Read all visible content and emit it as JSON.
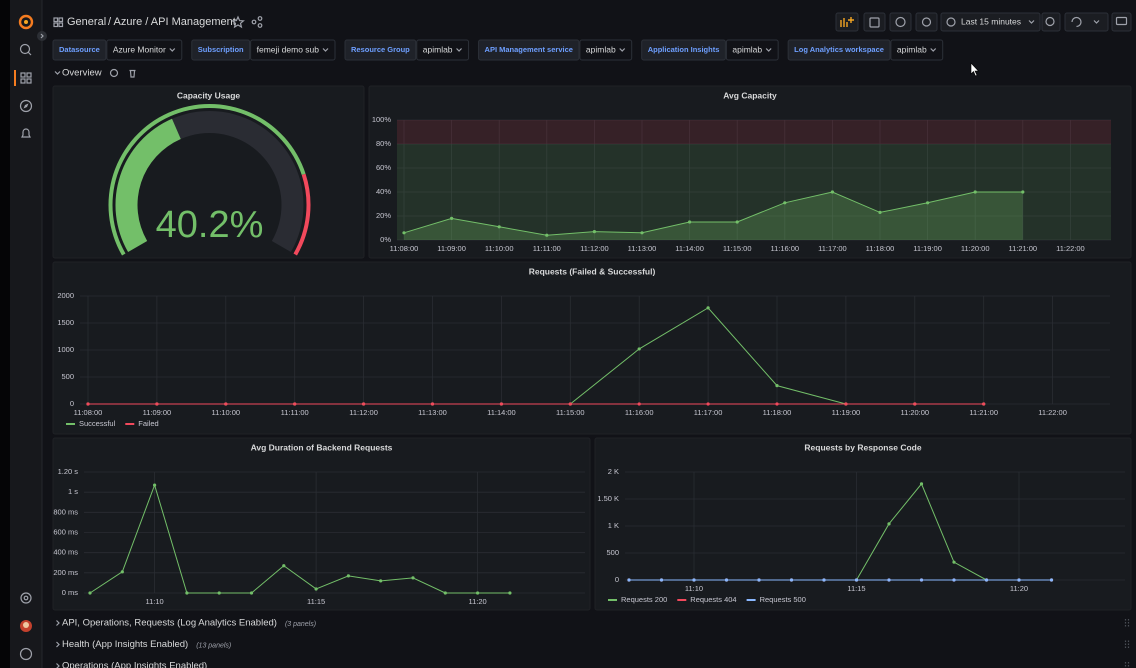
{
  "header": {
    "folder": "General",
    "path": "/ Azure / API Management",
    "time_range": "Last 15 minutes"
  },
  "variables": [
    {
      "label": "Datasource",
      "value": "Azure Monitor"
    },
    {
      "label": "Subscription",
      "value": "femeji demo sub"
    },
    {
      "label": "Resource Group",
      "value": "apimlab"
    },
    {
      "label": "API Management service",
      "value": "apimlab"
    },
    {
      "label": "Application Insights",
      "value": "apimlab"
    },
    {
      "label": "Log Analytics workspace",
      "value": "apimlab"
    }
  ],
  "row": {
    "title": "Overview"
  },
  "chart_data": [
    {
      "type": "gauge",
      "title": "Capacity Usage",
      "values": [
        40.2
      ],
      "value_labels": [
        "40.2%"
      ],
      "ylim": [
        0,
        100
      ],
      "thresholds": [
        80
      ],
      "color": "#73bf69",
      "threshold_color": "#f2495c"
    },
    {
      "type": "area",
      "title": "Avg Capacity",
      "categories": [
        "11:08:00",
        "11:09:00",
        "11:10:00",
        "11:11:00",
        "11:12:00",
        "11:13:00",
        "11:14:00",
        "11:15:00",
        "11:16:00",
        "11:17:00",
        "11:18:00",
        "11:19:00",
        "11:20:00",
        "11:21:00",
        "11:22:00"
      ],
      "values": [
        6,
        18,
        11,
        4,
        7,
        6,
        15,
        15,
        31,
        40,
        23,
        31,
        40,
        40,
        null
      ],
      "color": "#73bf69",
      "thresholds": [
        80
      ],
      "threshold_color": "#f2495c",
      "points": true,
      "grid": true,
      "ylim": [
        0,
        100
      ],
      "yticks": [
        {
          "value": 0,
          "label": "0%"
        },
        {
          "value": 20,
          "label": "20%"
        },
        {
          "value": 40,
          "label": "40%"
        },
        {
          "value": 60,
          "label": "60%"
        },
        {
          "value": 80,
          "label": "80%"
        },
        {
          "value": 100,
          "label": "100%"
        }
      ]
    },
    {
      "type": "line",
      "title": "Requests (Failed & Successful)",
      "categories": [
        "11:08:00",
        "11:09:00",
        "11:10:00",
        "11:11:00",
        "11:12:00",
        "11:13:00",
        "11:14:00",
        "11:15:00",
        "11:16:00",
        "11:17:00",
        "11:18:00",
        "11:19:00",
        "11:20:00",
        "11:21:00",
        "11:22:00"
      ],
      "series": [
        {
          "name": "Successful",
          "color": "#73bf69",
          "values": [
            0,
            0,
            0,
            0,
            0,
            0,
            0,
            0,
            1020,
            1780,
            340,
            0,
            0,
            0,
            null
          ]
        },
        {
          "name": "Failed",
          "color": "#f2495c",
          "values": [
            0,
            0,
            0,
            0,
            0,
            0,
            0,
            0,
            0,
            0,
            0,
            0,
            0,
            0,
            null
          ]
        }
      ],
      "points": true,
      "grid": true,
      "ylim": [
        0,
        2000
      ],
      "yticks": [
        0,
        500,
        1000,
        1500,
        2000
      ]
    },
    {
      "type": "line",
      "title": "Avg Duration of Backend Requests",
      "categories": [
        null,
        null,
        "11:10",
        null,
        null,
        null,
        null,
        "11:15",
        null,
        null,
        null,
        null,
        "11:20",
        null
      ],
      "values": [
        0,
        210,
        1070,
        0,
        0,
        0,
        270,
        40,
        170,
        120,
        150,
        0,
        0,
        0
      ],
      "color": "#73bf69",
      "points": true,
      "grid": true,
      "ylim": [
        0,
        1200
      ],
      "yticks": [
        {
          "value": 0,
          "label": "0 ms"
        },
        {
          "value": 200,
          "label": "200 ms"
        },
        {
          "value": 400,
          "label": "400 ms"
        },
        {
          "value": 600,
          "label": "600 ms"
        },
        {
          "value": 800,
          "label": "800 ms"
        },
        {
          "value": 1000,
          "label": "1 s"
        },
        {
          "value": 1200,
          "label": "1.20 s"
        }
      ]
    },
    {
      "type": "line",
      "title": "Requests by Response Code",
      "categories": [
        null,
        null,
        "11:10",
        null,
        null,
        null,
        null,
        "11:15",
        null,
        null,
        null,
        null,
        "11:20",
        null
      ],
      "series": [
        {
          "name": "Requests 200",
          "color": "#73bf69",
          "values": [
            0,
            0,
            0,
            0,
            0,
            0,
            0,
            0,
            1040,
            1780,
            330,
            0,
            0,
            0
          ]
        },
        {
          "name": "Requests 404",
          "color": "#f2495c",
          "values": [
            0,
            0,
            0,
            0,
            0,
            0,
            0,
            0,
            0,
            0,
            0,
            0,
            0,
            0
          ]
        },
        {
          "name": "Requests 500",
          "color": "#8ab8ff",
          "values": [
            0,
            0,
            0,
            0,
            0,
            0,
            0,
            0,
            0,
            0,
            0,
            0,
            0,
            0
          ]
        }
      ],
      "points": true,
      "grid": true,
      "ylim": [
        0,
        2000
      ],
      "yticks": [
        0,
        500,
        {
          "value": 1000,
          "label": "1 K"
        },
        {
          "value": 1500,
          "label": "1.50 K"
        },
        {
          "value": 2000,
          "label": "2 K"
        }
      ]
    }
  ],
  "collapsed_rows": [
    {
      "title": "API, Operations, Requests (Log Analytics Enabled)",
      "count": "(3 panels)"
    },
    {
      "title": "Health (App Insights Enabled)",
      "count": "(13 panels)"
    },
    {
      "title": "Operations (App Insights Enabled)"
    }
  ]
}
